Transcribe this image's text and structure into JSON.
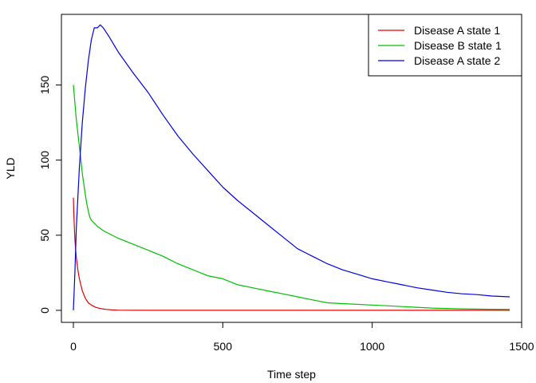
{
  "chart_data": {
    "type": "line",
    "title": "",
    "xlabel": "Time step",
    "ylabel": "YLD",
    "xlim": [
      -40,
      1500
    ],
    "ylim": [
      -8,
      197
    ],
    "x_ticks": [
      0,
      500,
      1000,
      1500
    ],
    "y_ticks": [
      0,
      50,
      100,
      150
    ],
    "grid": false,
    "legend_position": "top-right",
    "series": [
      {
        "name": "Disease A state 1",
        "color": "#e00000",
        "points": [
          [
            0,
            75
          ],
          [
            2,
            62
          ],
          [
            5,
            47
          ],
          [
            10,
            35
          ],
          [
            15,
            27
          ],
          [
            20,
            21
          ],
          [
            30,
            13
          ],
          [
            40,
            8
          ],
          [
            50,
            5
          ],
          [
            60,
            3.5
          ],
          [
            75,
            2
          ],
          [
            90,
            1.2
          ],
          [
            110,
            0.6
          ],
          [
            130,
            0.3
          ],
          [
            150,
            0.15
          ],
          [
            200,
            0.05
          ],
          [
            300,
            0
          ],
          [
            1460,
            0
          ]
        ]
      },
      {
        "name": "Disease B state 1",
        "color": "#00c000",
        "points": [
          [
            0,
            150
          ],
          [
            5,
            138
          ],
          [
            10,
            127
          ],
          [
            15,
            118
          ],
          [
            20,
            109
          ],
          [
            25,
            100
          ],
          [
            30,
            91
          ],
          [
            35,
            84
          ],
          [
            40,
            77
          ],
          [
            45,
            71
          ],
          [
            50,
            66
          ],
          [
            55,
            62
          ],
          [
            60,
            60
          ],
          [
            70,
            58
          ],
          [
            80,
            56
          ],
          [
            100,
            53
          ],
          [
            150,
            48
          ],
          [
            200,
            44
          ],
          [
            250,
            40
          ],
          [
            300,
            36
          ],
          [
            350,
            31
          ],
          [
            400,
            27
          ],
          [
            450,
            23
          ],
          [
            500,
            21
          ],
          [
            550,
            17
          ],
          [
            600,
            15
          ],
          [
            650,
            13
          ],
          [
            700,
            11
          ],
          [
            750,
            9
          ],
          [
            800,
            7
          ],
          [
            850,
            5
          ],
          [
            900,
            4.5
          ],
          [
            1000,
            3.5
          ],
          [
            1100,
            2.5
          ],
          [
            1200,
            1.5
          ],
          [
            1300,
            1
          ],
          [
            1400,
            0.7
          ],
          [
            1460,
            0.6
          ]
        ]
      },
      {
        "name": "Disease A state 2",
        "color": "#0000e0",
        "points": [
          [
            0,
            0
          ],
          [
            5,
            25
          ],
          [
            10,
            55
          ],
          [
            20,
            95
          ],
          [
            30,
            125
          ],
          [
            40,
            148
          ],
          [
            50,
            166
          ],
          [
            60,
            180
          ],
          [
            70,
            188
          ],
          [
            80,
            188
          ],
          [
            90,
            190
          ],
          [
            100,
            188
          ],
          [
            120,
            182
          ],
          [
            150,
            172
          ],
          [
            200,
            158
          ],
          [
            250,
            145
          ],
          [
            300,
            130
          ],
          [
            350,
            116
          ],
          [
            400,
            104
          ],
          [
            450,
            93
          ],
          [
            500,
            82
          ],
          [
            550,
            73
          ],
          [
            600,
            65
          ],
          [
            650,
            57
          ],
          [
            700,
            49
          ],
          [
            750,
            41
          ],
          [
            800,
            36
          ],
          [
            850,
            31
          ],
          [
            900,
            27
          ],
          [
            950,
            24
          ],
          [
            1000,
            21
          ],
          [
            1050,
            19
          ],
          [
            1100,
            17
          ],
          [
            1150,
            15
          ],
          [
            1200,
            13.5
          ],
          [
            1250,
            12
          ],
          [
            1300,
            11
          ],
          [
            1350,
            10.5
          ],
          [
            1400,
            9.5
          ],
          [
            1460,
            9
          ]
        ]
      }
    ]
  }
}
